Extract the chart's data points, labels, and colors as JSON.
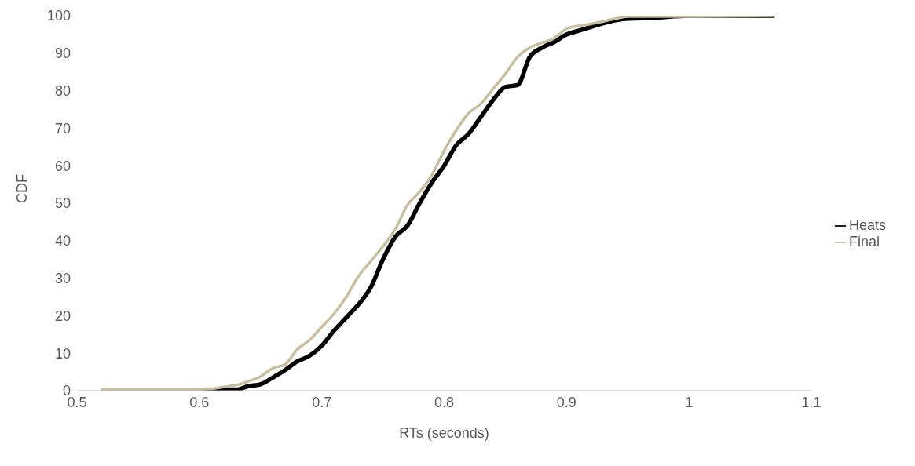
{
  "chart_data": {
    "type": "line",
    "xlabel": "RTs (seconds)",
    "ylabel": "CDF",
    "xlim": [
      0.5,
      1.1
    ],
    "xticks": [
      0.5,
      0.6,
      0.7,
      0.8,
      0.9,
      1,
      1.1
    ],
    "ylim": [
      0,
      100
    ],
    "yticks": [
      0,
      10,
      20,
      30,
      40,
      50,
      60,
      70,
      80,
      90,
      100
    ],
    "grid": false,
    "legend": "right",
    "marker": "none",
    "line_style": "solid",
    "series": [
      {
        "name": "Heats",
        "color": "#000000",
        "x": [
          0.52,
          0.6,
          0.62,
          0.63,
          0.64,
          0.65,
          0.66,
          0.67,
          0.68,
          0.69,
          0.7,
          0.71,
          0.72,
          0.73,
          0.74,
          0.75,
          0.76,
          0.77,
          0.78,
          0.79,
          0.8,
          0.81,
          0.82,
          0.83,
          0.84,
          0.85,
          0.86,
          0.87,
          0.88,
          0.89,
          0.9,
          0.91,
          0.92,
          0.93,
          0.94,
          0.95,
          0.97,
          1.0,
          1.07
        ],
        "values": [
          0,
          0,
          0.3,
          0.3,
          1.2,
          1.7,
          3.5,
          5.5,
          7.8,
          9.3,
          12,
          16,
          19.5,
          23,
          27.5,
          35,
          41,
          44,
          50,
          55.5,
          60,
          65.5,
          68.5,
          73,
          77.5,
          81,
          81.5,
          89,
          91.5,
          93,
          95,
          96,
          97,
          98,
          98.8,
          99.2,
          99.4,
          100,
          100
        ]
      },
      {
        "name": "Final",
        "color": "#c8bfa0",
        "x": [
          0.52,
          0.59,
          0.61,
          0.62,
          0.63,
          0.64,
          0.65,
          0.66,
          0.67,
          0.68,
          0.69,
          0.7,
          0.71,
          0.72,
          0.73,
          0.74,
          0.75,
          0.76,
          0.77,
          0.78,
          0.79,
          0.8,
          0.81,
          0.82,
          0.83,
          0.84,
          0.85,
          0.86,
          0.87,
          0.88,
          0.89,
          0.9,
          0.91,
          0.92,
          0.93,
          0.94,
          0.95,
          1.0,
          1.07
        ],
        "values": [
          0.3,
          0.3,
          0.5,
          1,
          1.5,
          2.5,
          3.8,
          6,
          7,
          11,
          13.5,
          17,
          20.5,
          25,
          30.5,
          34.5,
          38.5,
          43,
          49.5,
          53,
          57.5,
          64,
          69.5,
          74,
          76.5,
          80.5,
          84.5,
          89,
          91.5,
          92.8,
          94,
          96.5,
          97.3,
          97.8,
          98.5,
          99.2,
          99.8,
          99.8,
          100
        ]
      }
    ]
  }
}
